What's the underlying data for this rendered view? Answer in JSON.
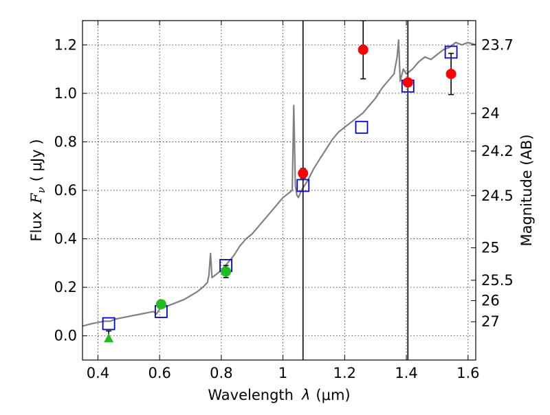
{
  "chart_data": {
    "type": "scatter",
    "xlabel_prefix": "Wavelength",
    "xlabel_symbol": "λ",
    "xlabel_unit": "(μm)",
    "ylabel_prefix": "Flux",
    "ylabel_symbol": "F",
    "ylabel_sub": "ν",
    "ylabel_unit": "( μJy )",
    "y2label": "Magnitude (AB)",
    "xlim": [
      0.35,
      1.625
    ],
    "ylim": [
      -0.1,
      1.3
    ],
    "grid": true,
    "x_ticks": [
      0.4,
      0.6,
      0.8,
      1.0,
      1.2,
      1.4,
      1.6
    ],
    "x_tick_labels": [
      "0.4",
      "0.6",
      "0.8",
      "1",
      "1.2",
      "1.4",
      "1.6"
    ],
    "y_ticks": [
      0.0,
      0.2,
      0.4,
      0.6,
      0.8,
      1.0,
      1.2
    ],
    "y_tick_labels": [
      "0.0",
      "0.2",
      "0.4",
      "0.6",
      "0.8",
      "1.0",
      "1.2"
    ],
    "y2_ticks": [
      {
        "label": "23.7",
        "flux": 1.2
      },
      {
        "label": "24",
        "flux": 0.917
      },
      {
        "label": "24.2",
        "flux": 0.762
      },
      {
        "label": "24.5",
        "flux": 0.578
      },
      {
        "label": "25",
        "flux": 0.363
      },
      {
        "label": "25.5",
        "flux": 0.229
      },
      {
        "label": "26",
        "flux": 0.145
      },
      {
        "label": "27",
        "flux": 0.058
      }
    ],
    "vertical_lines": [
      1.065,
      1.405
    ],
    "model_spectrum": {
      "color": "#808080",
      "x": [
        0.35,
        0.38,
        0.4,
        0.42,
        0.44,
        0.46,
        0.48,
        0.5,
        0.52,
        0.54,
        0.56,
        0.58,
        0.59,
        0.6,
        0.62,
        0.64,
        0.66,
        0.68,
        0.7,
        0.72,
        0.74,
        0.755,
        0.76,
        0.765,
        0.77,
        0.78,
        0.8,
        0.82,
        0.84,
        0.86,
        0.88,
        0.9,
        0.92,
        0.94,
        0.96,
        0.98,
        1.0,
        1.02,
        1.03,
        1.035,
        1.04,
        1.045,
        1.05,
        1.06,
        1.07,
        1.08,
        1.1,
        1.12,
        1.14,
        1.16,
        1.18,
        1.2,
        1.22,
        1.24,
        1.26,
        1.28,
        1.3,
        1.32,
        1.34,
        1.36,
        1.37,
        1.375,
        1.38,
        1.39,
        1.4,
        1.42,
        1.44,
        1.46,
        1.48,
        1.5,
        1.52,
        1.54,
        1.56,
        1.58,
        1.6,
        1.625
      ],
      "y": [
        0.04,
        0.05,
        0.055,
        0.06,
        0.06,
        0.07,
        0.075,
        0.08,
        0.085,
        0.09,
        0.095,
        0.1,
        0.09,
        0.11,
        0.12,
        0.13,
        0.14,
        0.15,
        0.165,
        0.18,
        0.2,
        0.22,
        0.25,
        0.34,
        0.24,
        0.25,
        0.27,
        0.3,
        0.33,
        0.37,
        0.4,
        0.42,
        0.45,
        0.48,
        0.51,
        0.54,
        0.57,
        0.59,
        0.6,
        0.95,
        0.62,
        0.58,
        0.57,
        0.6,
        0.62,
        0.64,
        0.69,
        0.73,
        0.77,
        0.81,
        0.84,
        0.86,
        0.88,
        0.9,
        0.92,
        0.95,
        0.98,
        1.02,
        1.05,
        1.08,
        1.15,
        1.22,
        1.05,
        1.1,
        1.08,
        1.1,
        1.13,
        1.15,
        1.14,
        1.16,
        1.18,
        1.19,
        1.21,
        1.2,
        1.21,
        1.2
      ]
    },
    "series": [
      {
        "marker": "square",
        "color": "#0000cc",
        "x": [
          0.435,
          0.605,
          0.815,
          1.065,
          1.255,
          1.405,
          1.545
        ],
        "y": [
          0.05,
          0.1,
          0.29,
          0.62,
          0.86,
          1.03,
          1.17
        ]
      },
      {
        "marker": "circle",
        "color": "#ff0000",
        "x": [
          1.065,
          1.26,
          1.405,
          1.545
        ],
        "y": [
          0.67,
          1.18,
          1.045,
          1.08
        ],
        "yerr": [
          0.02,
          0.12,
          0.01,
          0.085
        ]
      },
      {
        "marker": "circle",
        "color": "#22bb22",
        "x": [
          0.605,
          0.815
        ],
        "y": [
          0.13,
          0.265
        ],
        "yerr": [
          0.015,
          0.025
        ]
      },
      {
        "marker": "triangle",
        "color": "#22bb22",
        "x": [
          0.435
        ],
        "y": [
          -0.01
        ],
        "yerr_up": [
          0.03
        ]
      }
    ]
  }
}
